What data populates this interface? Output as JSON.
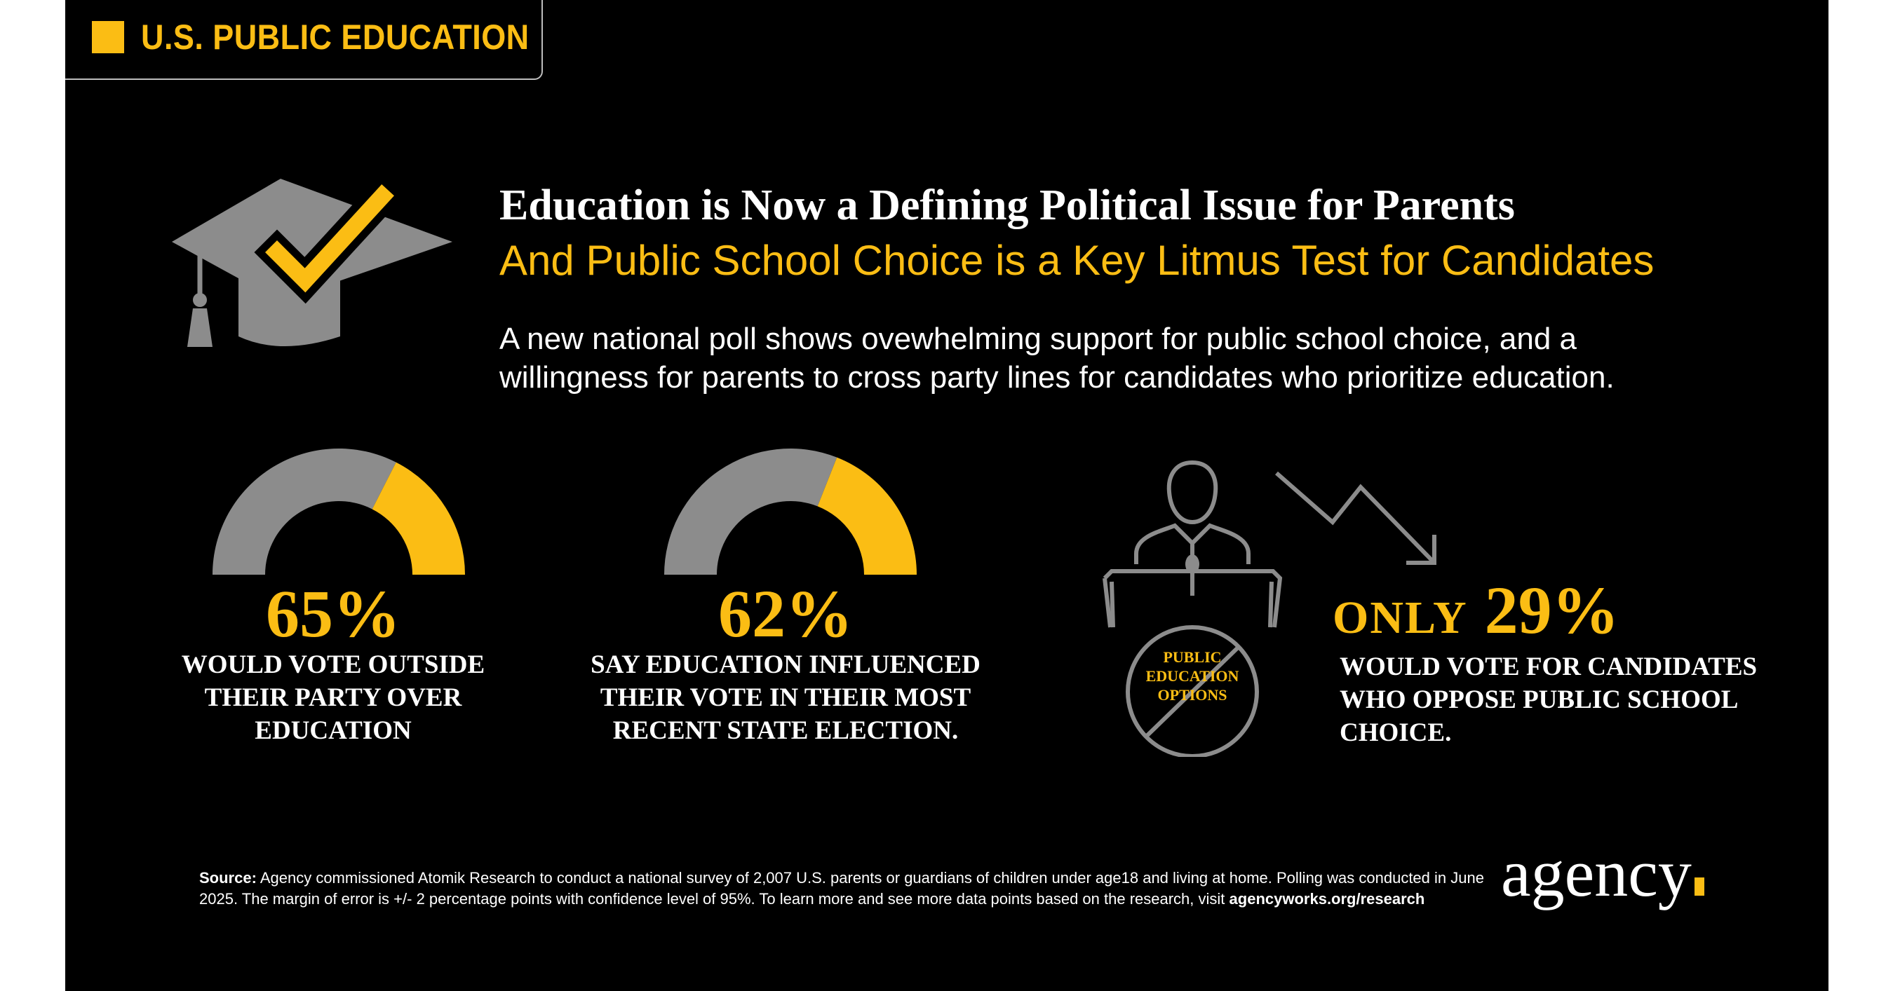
{
  "tag": {
    "label": "U.S. PUBLIC EDUCATION"
  },
  "headline": "Education is Now a Defining Political Issue for Parents",
  "subheadline": "And Public School Choice is a Key Litmus Test for Candidates",
  "intro": "A new national poll shows ovewhelming support for public school choice, and a willingness for parents to cross party lines for candidates who prioritize education.",
  "icons": {
    "cap": "graduation-cap-checkmark-icon",
    "podium": "candidate-podium-icon",
    "trend": "downward-trend-arrow-icon"
  },
  "colors": {
    "accent": "#fbbd14",
    "gray": "#8c8c8c",
    "background": "#000000"
  },
  "stats": [
    {
      "value": 65,
      "percent_label": "65%",
      "description": "WOULD VOTE OUTSIDE THEIR PARTY OVER EDUCATION"
    },
    {
      "value": 62,
      "percent_label": "62%",
      "description": "SAY EDUCATION INFLUENCED THEIR VOTE IN THEIR MOST RECENT STATE ELECTION."
    },
    {
      "value": 29,
      "prefix": "ONLY",
      "percent_label": "29%",
      "description": "WOULD VOTE FOR CANDIDATES WHO OPPOSE PUBLIC SCHOOL CHOICE."
    }
  ],
  "podium_sign": {
    "line1": "PUBLIC",
    "line2": "EDUCATION",
    "line3": "OPTIONS"
  },
  "source": {
    "label": "Source:",
    "text": "Agency commissioned Atomik Research to conduct a national survey of 2,007 U.S. parents or guardians of children under age18 and living at home. Polling was conducted in June 2025. The margin of error is +/- 2 percentage points with confidence level of 95%. To learn more and see more data points based on the research, visit",
    "link": "agencyworks.org/research"
  },
  "logo": "agency"
}
